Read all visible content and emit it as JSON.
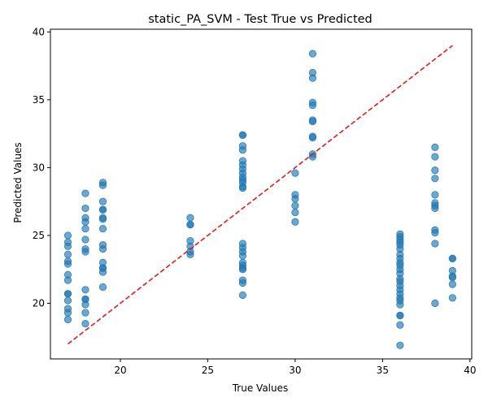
{
  "chart_data": {
    "type": "scatter",
    "title": "static_PA_SVM - Test True vs Predicted",
    "xlabel": "True Values",
    "ylabel": "Predicted Values",
    "xlim": [
      16.0,
      40.1
    ],
    "ylim": [
      15.9,
      40.2
    ],
    "xticks": [
      20,
      25,
      30,
      35,
      40
    ],
    "yticks": [
      20,
      25,
      30,
      35,
      40
    ],
    "grid": false,
    "legend": "none",
    "point_color": "#1f77b4",
    "point_alpha": 0.65,
    "reference_line": {
      "style": "dashed",
      "color": "#e41a1c",
      "from": [
        17,
        17
      ],
      "to": [
        39,
        39
      ]
    },
    "series": [
      {
        "points": [
          [
            17,
            25.0
          ],
          [
            17,
            24.5
          ],
          [
            17,
            24.2
          ],
          [
            17,
            23.6
          ],
          [
            17,
            23.1
          ],
          [
            17,
            22.9
          ],
          [
            17,
            22.1
          ],
          [
            17,
            21.7
          ],
          [
            17,
            20.7
          ],
          [
            17,
            20.7
          ],
          [
            17,
            20.2
          ],
          [
            17,
            19.6
          ],
          [
            17,
            19.3
          ],
          [
            17,
            18.8
          ],
          [
            18,
            28.1
          ],
          [
            18,
            27.0
          ],
          [
            18,
            26.3
          ],
          [
            18,
            26.0
          ],
          [
            18,
            25.5
          ],
          [
            18,
            24.7
          ],
          [
            18,
            24.0
          ],
          [
            18,
            23.8
          ],
          [
            18,
            21.0
          ],
          [
            18,
            20.3
          ],
          [
            18,
            20.3
          ],
          [
            18,
            19.9
          ],
          [
            18,
            19.3
          ],
          [
            18,
            18.5
          ],
          [
            19,
            28.9
          ],
          [
            19,
            28.7
          ],
          [
            19,
            27.5
          ],
          [
            19,
            26.9
          ],
          [
            19,
            26.9
          ],
          [
            19,
            26.3
          ],
          [
            19,
            26.2
          ],
          [
            19,
            25.5
          ],
          [
            19,
            24.3
          ],
          [
            19,
            24.0
          ],
          [
            19,
            23.0
          ],
          [
            19,
            22.6
          ],
          [
            19,
            22.6
          ],
          [
            19,
            22.3
          ],
          [
            19,
            21.2
          ],
          [
            24,
            26.3
          ],
          [
            24,
            25.8
          ],
          [
            24,
            25.8
          ],
          [
            24,
            24.6
          ],
          [
            24,
            24.2
          ],
          [
            24,
            23.8
          ],
          [
            24,
            23.6
          ],
          [
            27,
            32.4
          ],
          [
            27,
            32.4
          ],
          [
            27,
            31.6
          ],
          [
            27,
            31.3
          ],
          [
            27,
            30.5
          ],
          [
            27,
            30.2
          ],
          [
            27,
            29.9
          ],
          [
            27,
            29.6
          ],
          [
            27,
            29.3
          ],
          [
            27,
            29.1
          ],
          [
            27,
            28.9
          ],
          [
            27,
            28.6
          ],
          [
            27,
            28.5
          ],
          [
            27,
            24.4
          ],
          [
            27,
            24.1
          ],
          [
            27,
            23.8
          ],
          [
            27,
            23.5
          ],
          [
            27,
            23.0
          ],
          [
            27,
            22.8
          ],
          [
            27,
            22.6
          ],
          [
            27,
            22.5
          ],
          [
            27,
            21.7
          ],
          [
            27,
            21.5
          ],
          [
            27,
            20.6
          ],
          [
            30,
            29.6
          ],
          [
            30,
            28.0
          ],
          [
            30,
            27.7
          ],
          [
            30,
            27.2
          ],
          [
            30,
            26.7
          ],
          [
            30,
            26.0
          ],
          [
            31,
            38.4
          ],
          [
            31,
            37.0
          ],
          [
            31,
            36.6
          ],
          [
            31,
            34.8
          ],
          [
            31,
            34.6
          ],
          [
            31,
            33.5
          ],
          [
            31,
            33.4
          ],
          [
            31,
            32.3
          ],
          [
            31,
            32.2
          ],
          [
            31,
            31.0
          ],
          [
            31,
            30.8
          ],
          [
            36,
            25.1
          ],
          [
            36,
            24.9
          ],
          [
            36,
            24.7
          ],
          [
            36,
            24.5
          ],
          [
            36,
            24.3
          ],
          [
            36,
            24.0
          ],
          [
            36,
            23.6
          ],
          [
            36,
            23.3
          ],
          [
            36,
            23.0
          ],
          [
            36,
            22.8
          ],
          [
            36,
            22.5
          ],
          [
            36,
            22.2
          ],
          [
            36,
            21.8
          ],
          [
            36,
            21.6
          ],
          [
            36,
            21.3
          ],
          [
            36,
            21.0
          ],
          [
            36,
            20.7
          ],
          [
            36,
            20.4
          ],
          [
            36,
            20.2
          ],
          [
            36,
            19.9
          ],
          [
            36,
            19.1
          ],
          [
            36,
            19.1
          ],
          [
            36,
            18.4
          ],
          [
            36,
            16.9
          ],
          [
            38,
            31.5
          ],
          [
            38,
            30.8
          ],
          [
            38,
            29.8
          ],
          [
            38,
            29.2
          ],
          [
            38,
            28.0
          ],
          [
            38,
            27.4
          ],
          [
            38,
            27.2
          ],
          [
            38,
            27.0
          ],
          [
            38,
            25.4
          ],
          [
            38,
            25.2
          ],
          [
            38,
            24.4
          ],
          [
            38,
            20.0
          ],
          [
            39,
            23.3
          ],
          [
            39,
            23.3
          ],
          [
            39,
            22.4
          ],
          [
            39,
            22.0
          ],
          [
            39,
            21.9
          ],
          [
            39,
            21.4
          ],
          [
            39,
            20.4
          ]
        ]
      }
    ]
  }
}
